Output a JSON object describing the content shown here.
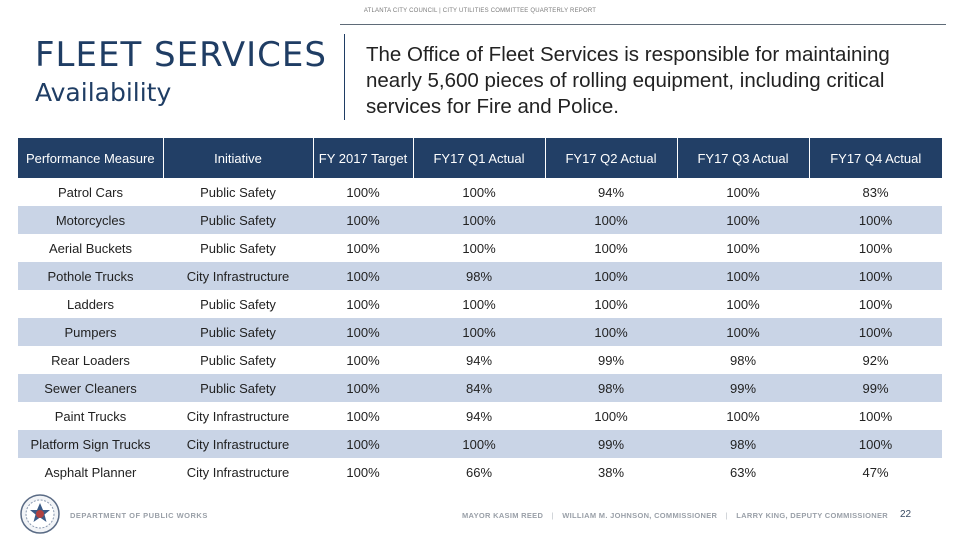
{
  "header": {
    "caption": "ATLANTA CITY COUNCIL | CITY UTILITIES COMMITTEE QUARTERLY REPORT",
    "title": "FLEET SERVICES",
    "subtitle": "Availability",
    "intro": "The Office of Fleet Services is responsible for maintaining nearly 5,600 pieces of rolling equipment, including critical services for Fire and Police."
  },
  "table": {
    "columns": [
      "Performance Measure",
      "Initiative",
      "FY 2017 Target",
      "FY17 Q1 Actual",
      "FY17 Q2 Actual",
      "FY17 Q3 Actual",
      "FY17 Q4 Actual"
    ],
    "rows": [
      [
        "Patrol Cars",
        "Public Safety",
        "100%",
        "100%",
        "94%",
        "100%",
        "83%"
      ],
      [
        "Motorcycles",
        "Public Safety",
        "100%",
        "100%",
        "100%",
        "100%",
        "100%"
      ],
      [
        "Aerial Buckets",
        "Public Safety",
        "100%",
        "100%",
        "100%",
        "100%",
        "100%"
      ],
      [
        "Pothole Trucks",
        "City Infrastructure",
        "100%",
        "98%",
        "100%",
        "100%",
        "100%"
      ],
      [
        "Ladders",
        "Public Safety",
        "100%",
        "100%",
        "100%",
        "100%",
        "100%"
      ],
      [
        "Pumpers",
        "Public Safety",
        "100%",
        "100%",
        "100%",
        "100%",
        "100%"
      ],
      [
        "Rear Loaders",
        "Public Safety",
        "100%",
        "94%",
        "99%",
        "98%",
        "92%"
      ],
      [
        "Sewer Cleaners",
        "Public Safety",
        "100%",
        "84%",
        "98%",
        "99%",
        "99%"
      ],
      [
        "Paint Trucks",
        "City Infrastructure",
        "100%",
        "94%",
        "100%",
        "100%",
        "100%"
      ],
      [
        "Platform Sign Trucks",
        "City Infrastructure",
        "100%",
        "100%",
        "99%",
        "98%",
        "100%"
      ],
      [
        "Asphalt Planner",
        "City Infrastructure",
        "100%",
        "66%",
        "38%",
        "63%",
        "47%"
      ]
    ]
  },
  "footer": {
    "department": "DEPARTMENT OF PUBLIC WORKS",
    "mayor": "MAYOR KASIM REED",
    "commissioner": "WILLIAM M. JOHNSON, COMMISSIONER",
    "deputy": "LARRY KING, DEPUTY COMMISSIONER",
    "page_number": "22"
  },
  "colors": {
    "header_bg": "#223f66",
    "band_row": "#c9d4e6",
    "title_text": "#1f3d64"
  },
  "icons": {
    "seal": "city-seal-icon"
  }
}
